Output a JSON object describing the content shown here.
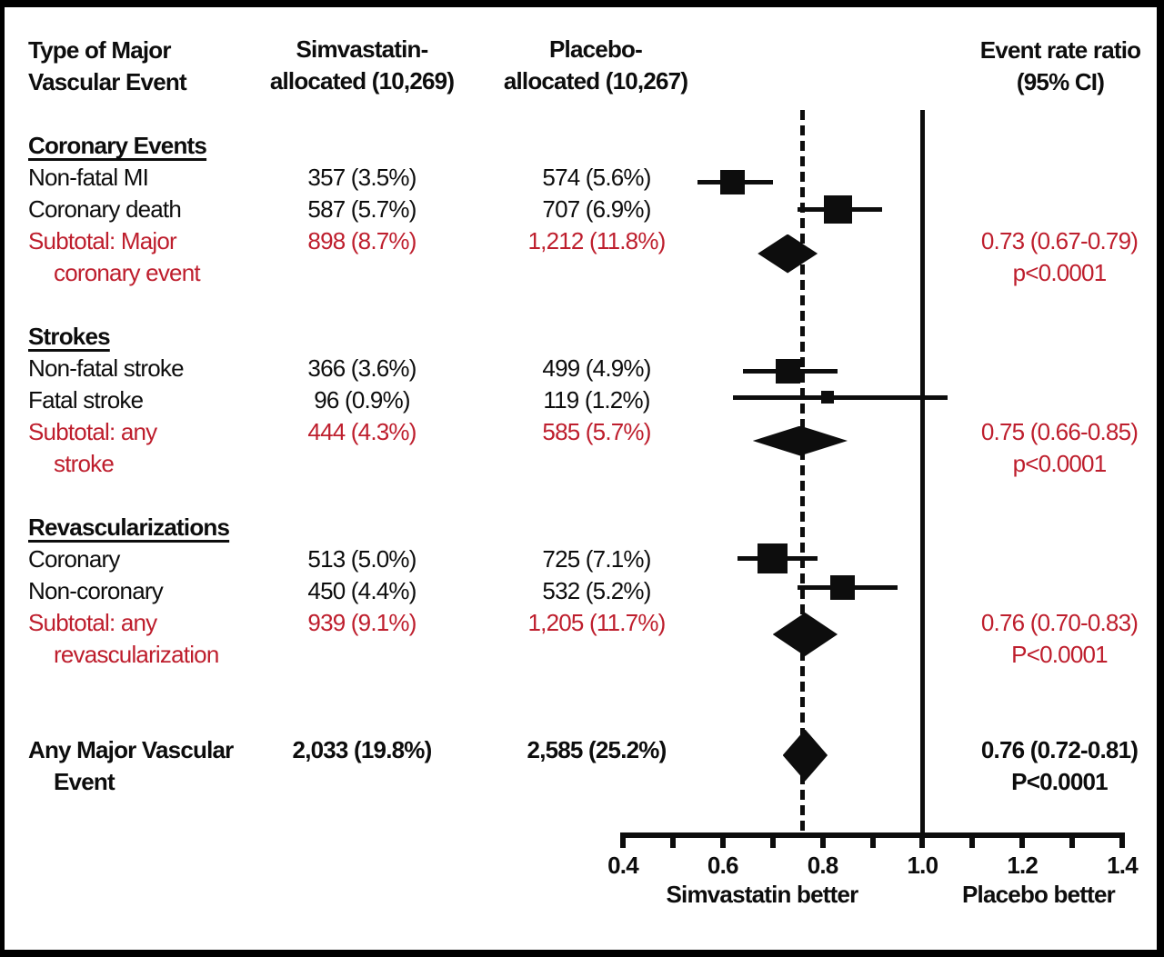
{
  "figure": {
    "background": "#ffffff",
    "border_color": "#000000",
    "text_color": "#0d0d0d",
    "accent_red": "#be1e2d"
  },
  "header": {
    "event_type": {
      "line1": "Type of Major",
      "line2": "Vascular Event"
    },
    "simvastatin": {
      "line1": "Simvastatin-",
      "line2": "allocated (10,269)"
    },
    "placebo": {
      "line1": "Placebo-",
      "line2": "allocated (10,267)"
    },
    "ratio": {
      "line1": "Event rate ratio",
      "line2": "(95% CI)"
    }
  },
  "chart_data": {
    "type": "forest",
    "x_axis": {
      "min": 0.4,
      "max": 1.4,
      "labeled_ticks": [
        0.4,
        0.6,
        0.8,
        1.0,
        1.2,
        1.4
      ],
      "labeled_tick_labels": [
        "0.4",
        "0.6",
        "0.8",
        "1.0",
        "1.2",
        "1.4"
      ],
      "minor_ticks": [
        0.5,
        0.7,
        0.9,
        1.1,
        1.3
      ],
      "left_region_label": "Simvastatin better",
      "right_region_label": "Placebo better"
    },
    "reference_lines": {
      "dashed_overall_estimate": 0.76,
      "solid_null_value": 1.0
    },
    "groups": [
      {
        "title": "Coronary Events",
        "items": [
          {
            "label": "Non-fatal MI",
            "simvastatin": "357 (3.5%)",
            "placebo": "574 (5.6%)",
            "estimate": 0.62,
            "ci_low": 0.55,
            "ci_high": 0.7,
            "marker_size": 27
          },
          {
            "label": "Coronary death",
            "simvastatin": "587 (5.7%)",
            "placebo": "707 (6.9%)",
            "estimate": 0.83,
            "ci_low": 0.75,
            "ci_high": 0.92,
            "marker_size": 31
          }
        ],
        "subtotal": {
          "label_line1": "Subtotal: Major",
          "label_line2": "coronary event",
          "simvastatin": "898 (8.7%)",
          "placebo": "1,212 (11.8%)",
          "estimate": 0.73,
          "ci_low": 0.67,
          "ci_high": 0.79,
          "ratio_text": "0.73 (0.67-0.79)",
          "p_text": "p<0.0001"
        }
      },
      {
        "title": "Strokes",
        "items": [
          {
            "label": "Non-fatal stroke",
            "simvastatin": "366 (3.6%)",
            "placebo": "499 (4.9%)",
            "estimate": 0.73,
            "ci_low": 0.64,
            "ci_high": 0.83,
            "marker_size": 27
          },
          {
            "label": "Fatal stroke",
            "simvastatin": "96 (0.9%)",
            "placebo": "119 (1.2%)",
            "estimate": 0.81,
            "ci_low": 0.62,
            "ci_high": 1.05,
            "marker_size": 14
          }
        ],
        "subtotal": {
          "label_line1": "Subtotal: any",
          "label_line2": "stroke",
          "simvastatin": "444 (4.3%)",
          "placebo": "585 (5.7%)",
          "estimate": 0.75,
          "ci_low": 0.66,
          "ci_high": 0.85,
          "ratio_text": "0.75 (0.66-0.85)",
          "p_text": "p<0.0001"
        }
      },
      {
        "title": "Revascularizations",
        "items": [
          {
            "label": "Coronary",
            "simvastatin": "513 (5.0%)",
            "placebo": "725 (7.1%)",
            "estimate": 0.7,
            "ci_low": 0.63,
            "ci_high": 0.79,
            "marker_size": 33
          },
          {
            "label": "Non-coronary",
            "simvastatin": "450 (4.4%)",
            "placebo": "532 (5.2%)",
            "estimate": 0.84,
            "ci_low": 0.75,
            "ci_high": 0.95,
            "marker_size": 27
          }
        ],
        "subtotal": {
          "label_line1": "Subtotal: any",
          "label_line2": "revascularization",
          "simvastatin": "939 (9.1%)",
          "placebo": "1,205 (11.7%)",
          "estimate": 0.76,
          "ci_low": 0.7,
          "ci_high": 0.83,
          "ratio_text": "0.76 (0.70-0.83)",
          "p_text": "P<0.0001"
        }
      }
    ],
    "total": {
      "label_line1": "Any Major Vascular",
      "label_line2": "Event",
      "simvastatin": "2,033 (19.8%)",
      "placebo": "2,585 (25.2%)",
      "estimate": 0.76,
      "ci_low": 0.72,
      "ci_high": 0.81,
      "ratio_text": "0.76 (0.72-0.81)",
      "p_text": "P<0.0001"
    }
  }
}
